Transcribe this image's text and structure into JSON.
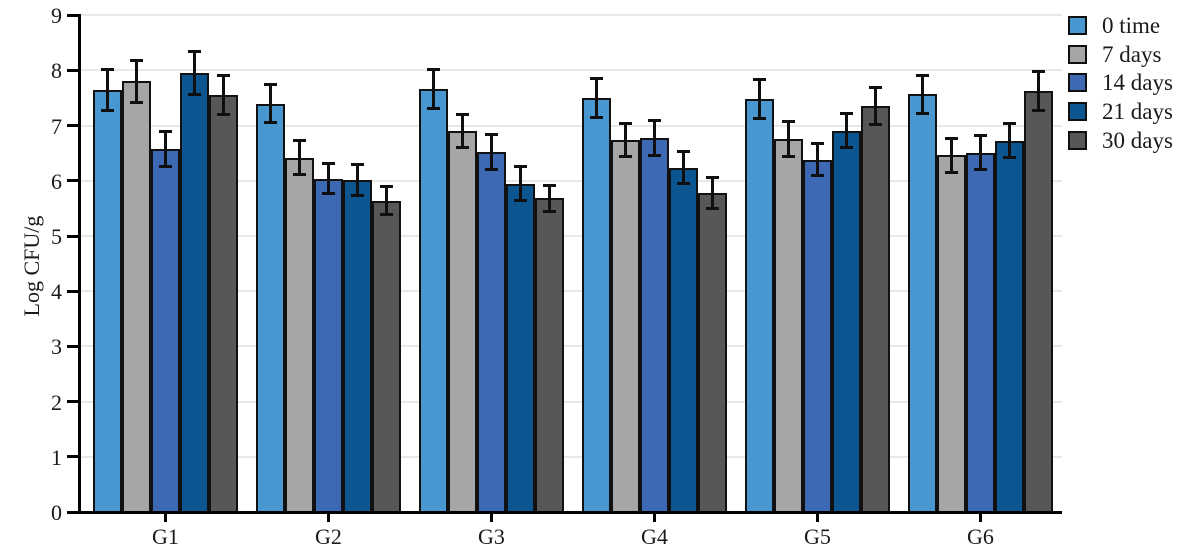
{
  "chart_data": {
    "type": "bar",
    "title": "",
    "xlabel": "",
    "ylabel": "Log CFU/g",
    "ylim": [
      0,
      9
    ],
    "ytick_step": 1,
    "grid": true,
    "error_bars": true,
    "legend_position": "top-right-outside",
    "categories": [
      "G1",
      "G2",
      "G3",
      "G4",
      "G5",
      "G6"
    ],
    "series": [
      {
        "name": "0 time",
        "color": "#4997D0",
        "values": [
          7.65,
          7.4,
          7.67,
          7.5,
          7.49,
          7.57
        ],
        "errors": [
          0.4,
          0.37,
          0.38,
          0.38,
          0.38,
          0.37
        ]
      },
      {
        "name": "7 days",
        "color": "#A6A6A8",
        "values": [
          7.8,
          6.42,
          6.9,
          6.74,
          6.76,
          6.46
        ],
        "errors": [
          0.4,
          0.33,
          0.33,
          0.33,
          0.34,
          0.33
        ]
      },
      {
        "name": "14 days",
        "color": "#3C68B4",
        "values": [
          6.58,
          6.04,
          6.52,
          6.78,
          6.38,
          6.51
        ],
        "errors": [
          0.34,
          0.3,
          0.34,
          0.34,
          0.32,
          0.33
        ]
      },
      {
        "name": "21 days",
        "color": "#0B5591",
        "values": [
          7.95,
          6.01,
          5.95,
          6.24,
          6.91,
          6.73
        ],
        "errors": [
          0.42,
          0.31,
          0.33,
          0.31,
          0.34,
          0.33
        ]
      },
      {
        "name": "30 days",
        "color": "#575759",
        "values": [
          7.55,
          5.64,
          5.68,
          5.78,
          7.35,
          7.62
        ],
        "errors": [
          0.38,
          0.28,
          0.27,
          0.3,
          0.36,
          0.38
        ]
      }
    ]
  },
  "colors": {
    "background": "#FFFFFF",
    "axis": "#000000",
    "bar_outline": "#111111",
    "gridline": "#E8E8E8",
    "text": "#1A1A1A"
  }
}
